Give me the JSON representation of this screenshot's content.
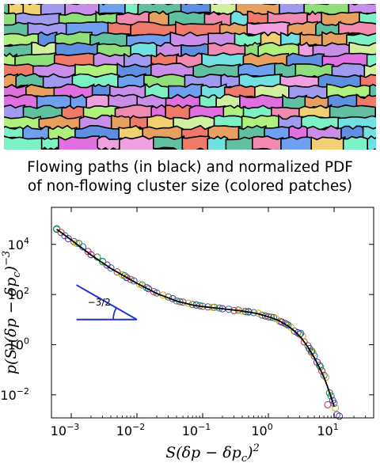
{
  "caption": {
    "line1": "Flowing paths (in black) and normalized PDF",
    "line2": "of non-flowing cluster size (colored patches)"
  },
  "colors": {
    "fit_line": "#000000",
    "slope_triangle": "#1f2fd6",
    "patch_palette": [
      "#7cf2c4",
      "#c98fe8",
      "#f08ab0",
      "#8fe07a",
      "#6fa0f0",
      "#f0d070",
      "#e06fe0",
      "#70e0e0",
      "#b0f07c",
      "#f07a6a",
      "#a09af0",
      "#60c0a0",
      "#e8a060",
      "#d0f0a0",
      "#5f8fe0",
      "#f0a0e0"
    ]
  },
  "chart_data": {
    "type": "scatter",
    "title": "",
    "xlabel": "S(δp − δp_c)^2",
    "ylabel": "p(S)(δp − δp_c)^−3",
    "x_scale": "log",
    "y_scale": "log",
    "xlim": [
      0.0005,
      40
    ],
    "ylim": [
      0.0012,
      300000
    ],
    "x_ticks": [
      {
        "value": 0.001,
        "base": "10",
        "exp": "−3"
      },
      {
        "value": 0.01,
        "base": "10",
        "exp": "−2"
      },
      {
        "value": 0.1,
        "base": "10",
        "exp": "−1"
      },
      {
        "value": 1,
        "base": "10",
        "exp": "0"
      },
      {
        "value": 10,
        "base": "10",
        "exp": "1"
      }
    ],
    "y_ticks": [
      {
        "value": 0.01,
        "base": "10",
        "exp": "−2"
      },
      {
        "value": 1,
        "base": "10",
        "exp": "0"
      },
      {
        "value": 100,
        "base": "10",
        "exp": "2"
      },
      {
        "value": 10000,
        "base": "10",
        "exp": "4"
      }
    ],
    "annotation": {
      "text": "−3/2",
      "slope": -1.5
    },
    "grid": false,
    "legend": "none",
    "fit_curve": {
      "x": [
        0.0006,
        0.001,
        0.002,
        0.004,
        0.007,
        0.01,
        0.02,
        0.04,
        0.07,
        0.1,
        0.2,
        0.35,
        0.5,
        0.7,
        1.0,
        1.4,
        2.0,
        2.6,
        3.2,
        4.0,
        5.0,
        6.0,
        7.0,
        8.0,
        9.0,
        10.0
      ],
      "y": [
        40000,
        15000,
        3800,
        1100,
        480,
        280,
        110,
        55,
        38,
        33,
        27,
        23,
        20,
        17,
        13,
        9.5,
        5.5,
        3.2,
        1.8,
        0.8,
        0.3,
        0.12,
        0.05,
        0.02,
        0.008,
        0.0035
      ]
    },
    "series": [
      {
        "color": "#2e7d32",
        "x": [
          0.0006,
          0.0011,
          0.0025,
          0.006,
          0.012,
          0.03,
          0.07,
          0.15,
          0.35,
          0.8,
          1.5,
          2.5,
          4.0,
          6.0,
          8.5
        ],
        "y": [
          42000,
          13000,
          3100,
          600,
          240,
          80,
          40,
          31,
          24,
          15,
          8.5,
          3.5,
          0.9,
          0.15,
          0.012
        ]
      },
      {
        "color": "#1565c0",
        "x": [
          0.0008,
          0.0015,
          0.004,
          0.009,
          0.02,
          0.05,
          0.12,
          0.25,
          0.6,
          1.2,
          2.0,
          3.0,
          5.0,
          7.0,
          10.0,
          11.0
        ],
        "y": [
          22000,
          8000,
          1150,
          350,
          115,
          50,
          32,
          26,
          19,
          12,
          6.0,
          2.6,
          0.35,
          0.06,
          0.0045,
          0.0016
        ]
      },
      {
        "color": "#c62828",
        "x": [
          0.0007,
          0.0018,
          0.005,
          0.008,
          0.018,
          0.045,
          0.1,
          0.3,
          0.5,
          1.0,
          1.8,
          3.5,
          4.5,
          6.5,
          8.0
        ],
        "y": [
          30000,
          5200,
          800,
          400,
          130,
          52,
          34,
          23,
          21,
          13,
          7.0,
          1.3,
          0.5,
          0.09,
          0.004
        ]
      },
      {
        "color": "#6a1b9a",
        "x": [
          0.0009,
          0.002,
          0.0035,
          0.007,
          0.015,
          0.035,
          0.08,
          0.2,
          0.45,
          0.9,
          1.6,
          2.8,
          4.2,
          5.5,
          9.5,
          12.0
        ],
        "y": [
          17000,
          3900,
          1500,
          470,
          170,
          68,
          38,
          27,
          21,
          14,
          8.0,
          3.0,
          0.7,
          0.2,
          0.006,
          0.0014
        ]
      },
      {
        "color": "#e0a000",
        "x": [
          0.0012,
          0.003,
          0.006,
          0.011,
          0.025,
          0.06,
          0.14,
          0.4,
          0.7,
          1.3,
          2.2,
          3.3,
          4.8,
          7.5,
          10.5
        ],
        "y": [
          11000,
          2000,
          610,
          260,
          95,
          45,
          31,
          22,
          18,
          11,
          5.0,
          2.2,
          0.45,
          0.05,
          0.003
        ]
      },
      {
        "color": "#00897b",
        "x": [
          0.0006,
          0.0013,
          0.003,
          0.0065,
          0.014,
          0.04,
          0.09,
          0.18,
          0.5,
          1.1,
          1.9,
          3.1,
          4.6,
          6.2,
          9.0
        ],
        "y": [
          40000,
          11000,
          2100,
          560,
          190,
          56,
          36,
          29,
          20,
          12.5,
          6.5,
          2.8,
          0.55,
          0.13,
          0.009
        ]
      }
    ]
  }
}
